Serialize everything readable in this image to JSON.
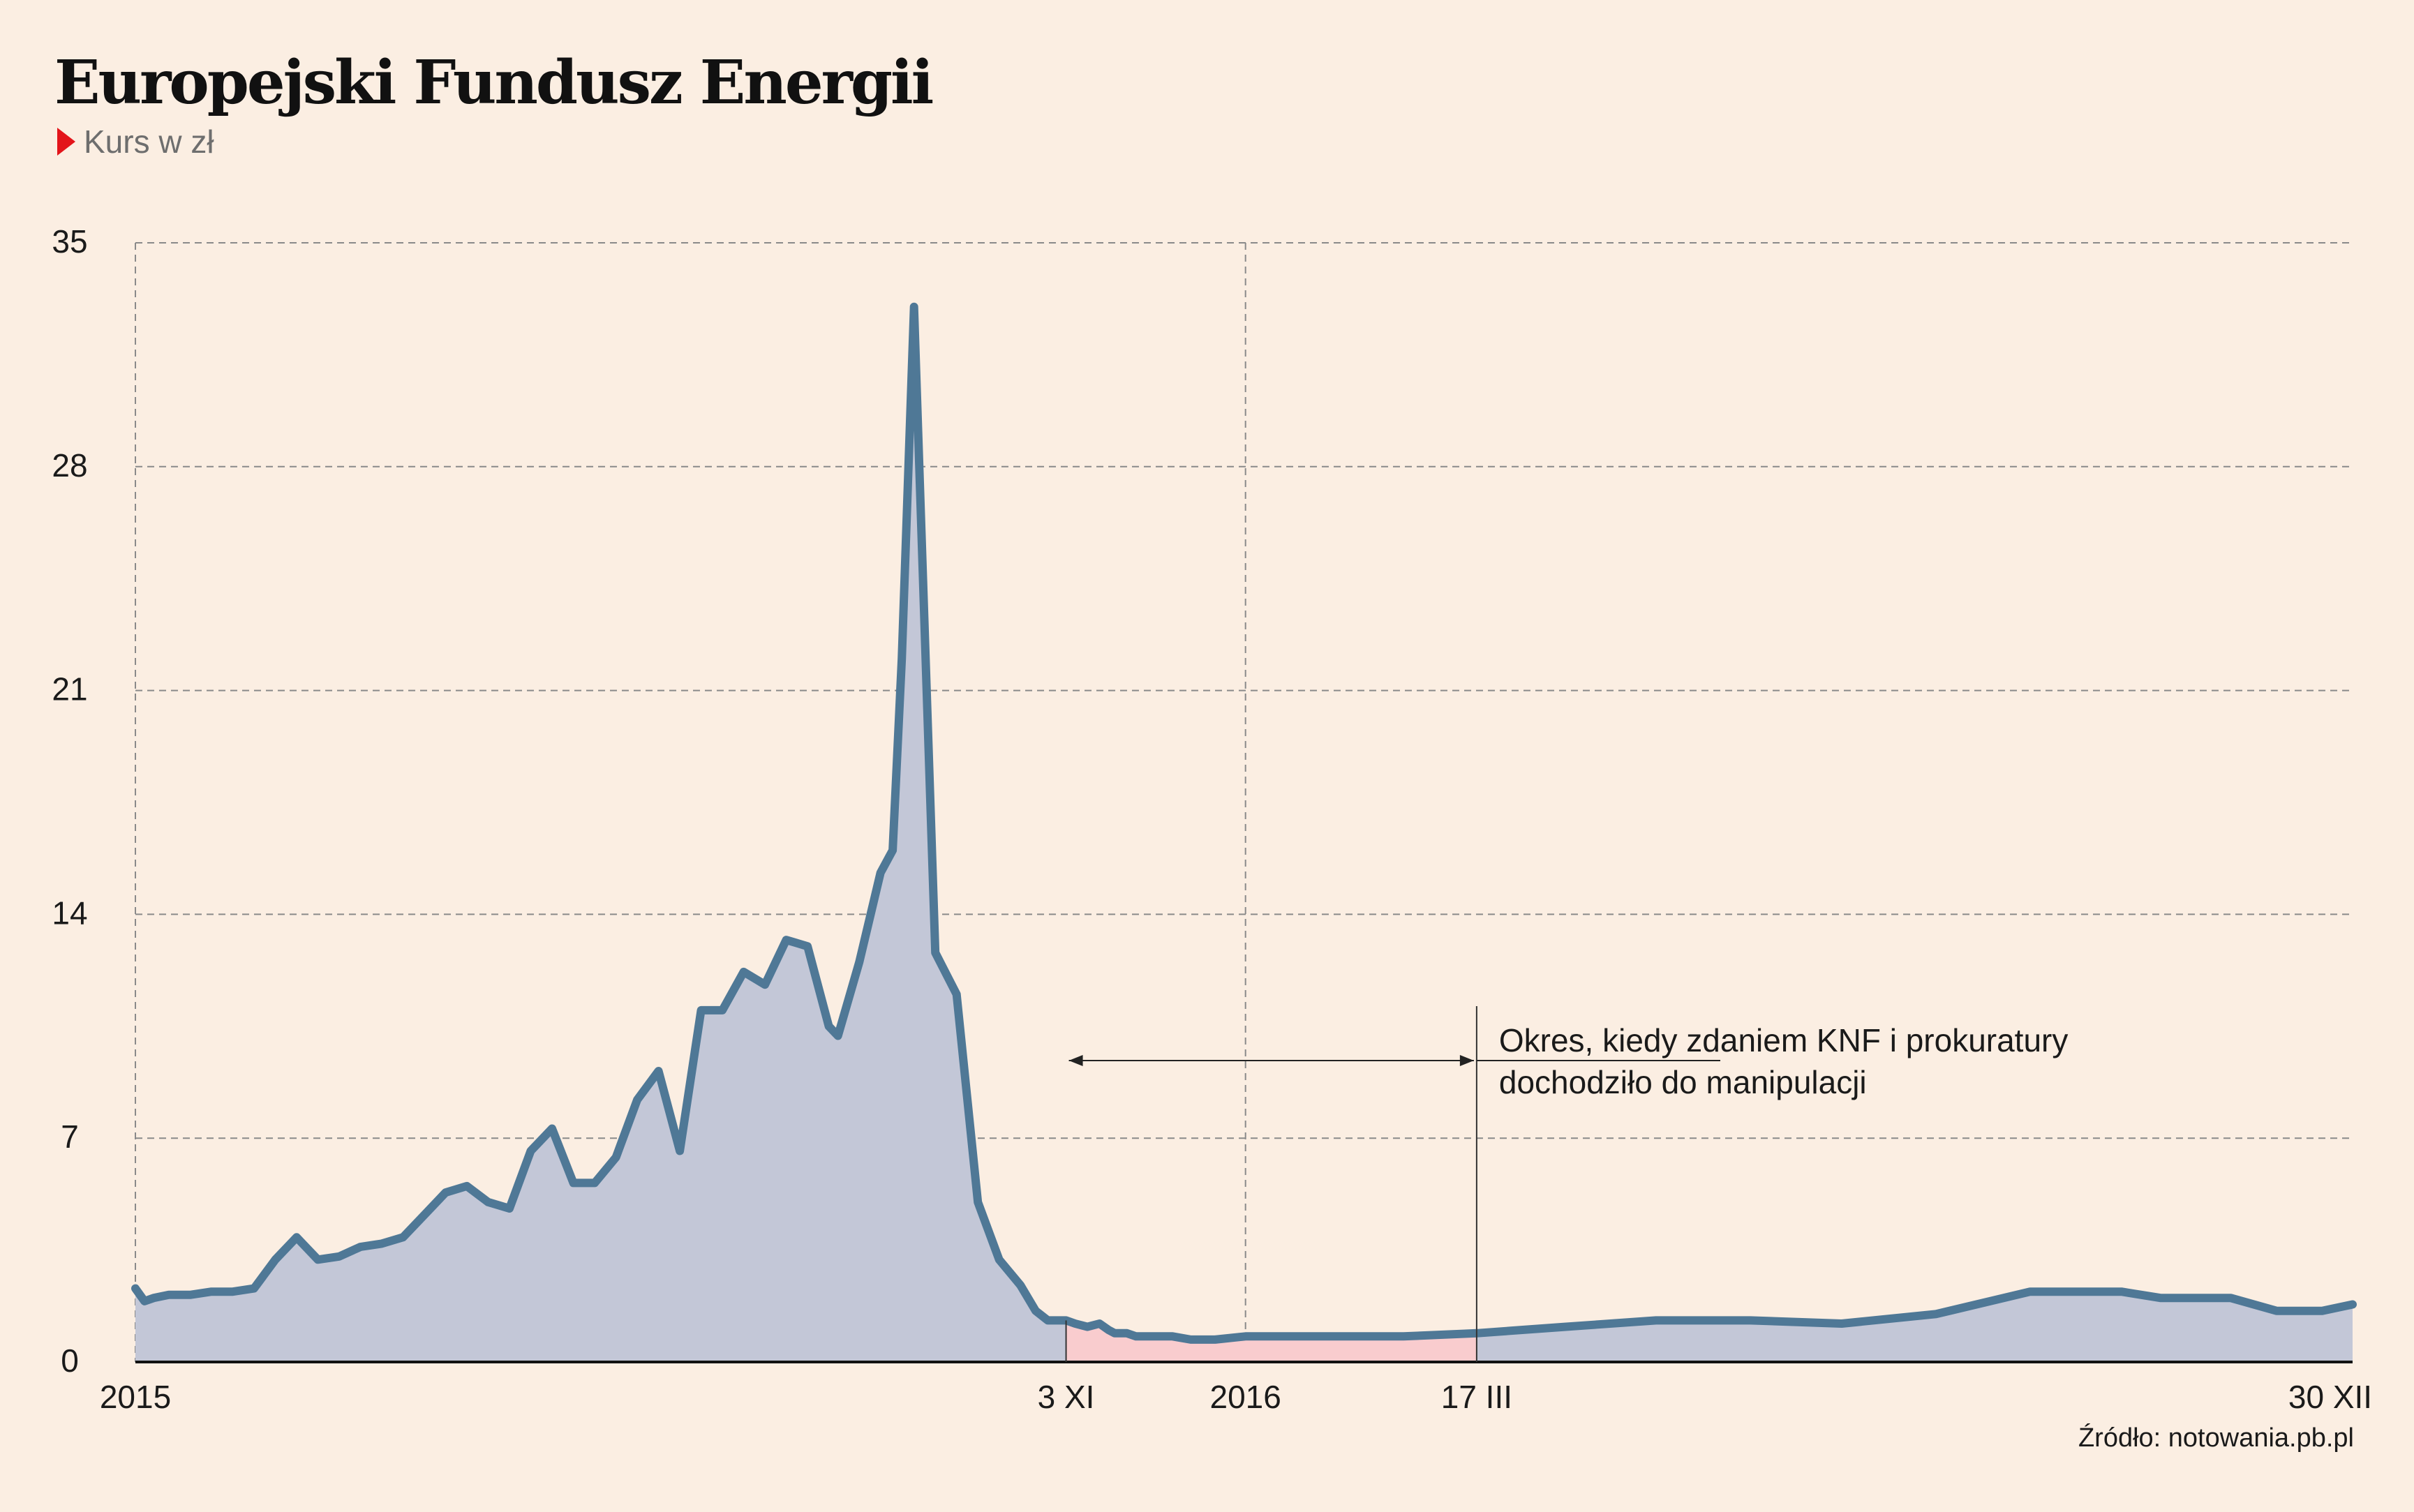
{
  "title": "Europejski Fundusz Energii",
  "subtitle": "Kurs w zł",
  "source": "Źródło: notowania.pb.pl",
  "colors": {
    "background": "#fbeee2",
    "line": "#4f7896",
    "area_normal": "#c3c7d7",
    "area_manipulation": "#f9ccce",
    "marker": "#e3141a"
  },
  "chart_data": {
    "type": "area",
    "title": "Europejski Fundusz Energii",
    "ylabel": "Kurs w zł",
    "ylim": [
      0,
      35
    ],
    "yticks": [
      "0",
      "7",
      "14",
      "21",
      "28",
      "35"
    ],
    "grid": true,
    "xlim": [
      "2015-01-01",
      "2016-12-30"
    ],
    "xticks": [
      {
        "date": "2015-01-01",
        "label": "2015"
      },
      {
        "date": "2015-11-03",
        "label": "3 XI"
      },
      {
        "date": "2016-01-01",
        "label": "2016"
      },
      {
        "date": "2016-03-17",
        "label": "17 III"
      },
      {
        "date": "2016-12-30",
        "label": "30 XII"
      }
    ],
    "highlight": {
      "from": "2015-11-03",
      "to": "2016-03-17",
      "label_lines": [
        "Okres, kiedy zdaniem KNF i prokuratury",
        "dochodziło do manipulacji"
      ]
    },
    "series": [
      {
        "x": [
          "2015-01-01",
          "2015-01-04",
          "2015-01-07",
          "2015-01-12",
          "2015-01-19",
          "2015-01-26",
          "2015-02-02",
          "2015-02-09",
          "2015-02-16",
          "2015-02-23",
          "2015-03-02",
          "2015-03-09",
          "2015-03-16",
          "2015-03-23",
          "2015-03-30",
          "2015-04-06",
          "2015-04-13",
          "2015-04-20",
          "2015-04-27",
          "2015-05-04",
          "2015-05-11",
          "2015-05-18",
          "2015-05-25",
          "2015-06-01",
          "2015-06-08",
          "2015-06-15",
          "2015-06-22",
          "2015-06-29",
          "2015-07-06",
          "2015-07-13",
          "2015-07-20",
          "2015-07-27",
          "2015-08-03",
          "2015-08-10",
          "2015-08-17",
          "2015-08-20",
          "2015-08-27",
          "2015-09-03",
          "2015-09-07",
          "2015-09-10",
          "2015-09-14",
          "2015-09-21",
          "2015-09-28",
          "2015-10-05",
          "2015-10-12",
          "2015-10-19",
          "2015-10-24",
          "2015-10-28",
          "2015-11-03",
          "2015-11-06",
          "2015-11-10",
          "2015-11-14",
          "2015-11-17",
          "2015-11-19",
          "2015-11-20",
          "2015-11-23",
          "2015-11-26",
          "2015-11-30",
          "2015-12-04",
          "2015-12-08",
          "2015-12-14",
          "2015-12-22",
          "2016-01-01",
          "2016-01-18",
          "2016-02-01",
          "2016-02-22",
          "2016-03-17",
          "2016-04-15",
          "2016-05-15",
          "2016-06-15",
          "2016-07-15",
          "2016-08-15",
          "2016-09-15",
          "2016-10-15",
          "2016-10-28",
          "2016-11-05",
          "2016-11-20",
          "2016-12-05",
          "2016-12-20",
          "2016-12-30"
        ],
        "values": [
          2.3,
          1.9,
          2.0,
          2.1,
          2.1,
          2.2,
          2.2,
          2.3,
          3.2,
          3.9,
          3.2,
          3.3,
          3.6,
          3.7,
          3.9,
          4.6,
          5.3,
          5.5,
          5.0,
          4.8,
          6.6,
          7.3,
          5.6,
          5.6,
          6.4,
          8.2,
          9.1,
          6.6,
          11.0,
          11.0,
          12.2,
          11.8,
          13.2,
          13.0,
          10.5,
          10.2,
          12.5,
          15.3,
          16.0,
          22.0,
          33.0,
          12.8,
          11.5,
          5.0,
          3.2,
          2.4,
          1.6,
          1.3,
          1.3,
          1.2,
          1.1,
          1.2,
          1.0,
          0.9,
          0.9,
          0.9,
          0.8,
          0.8,
          0.8,
          0.8,
          0.7,
          0.7,
          0.8,
          0.8,
          0.8,
          0.8,
          0.9,
          1.1,
          1.3,
          1.3,
          1.2,
          1.5,
          2.2,
          2.2,
          2.0,
          2.0,
          2.0,
          1.6,
          1.6,
          1.8
        ]
      }
    ]
  }
}
